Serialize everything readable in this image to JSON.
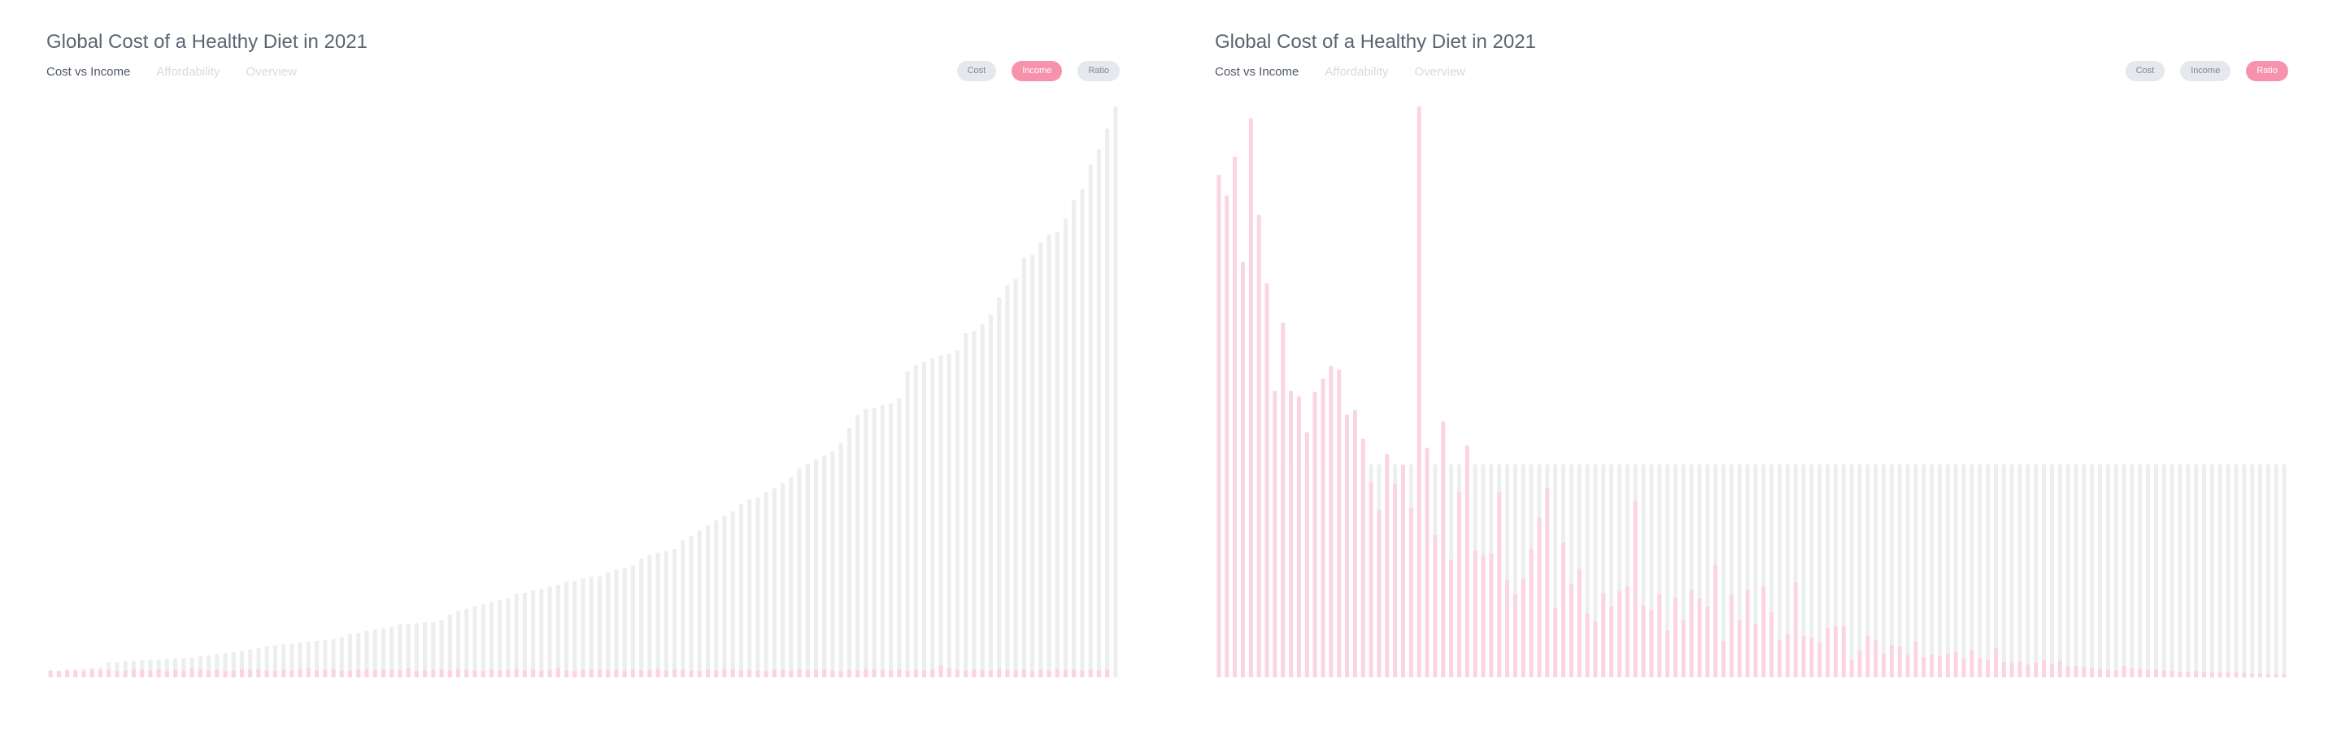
{
  "colors": {
    "background": "#ffffff",
    "ghost_bar": "#eceef0",
    "pink_bar": "#fcd4e0",
    "pill_active": "#f792ad",
    "pill_inactive": "#e5e8ec",
    "title": "#5a6470",
    "tab_active": "#4f5966",
    "tab_inactive": "#d6dae0"
  },
  "panels": [
    {
      "title": "Global Cost of a Healthy Diet in 2021",
      "tabs": [
        {
          "label": "Cost vs Income",
          "active": true
        },
        {
          "label": "Affordability",
          "active": false
        },
        {
          "label": "Overview",
          "active": false
        }
      ],
      "toggles": [
        {
          "label": "Cost",
          "active": false
        },
        {
          "label": "Income",
          "active": true
        },
        {
          "label": "Ratio",
          "active": false
        }
      ]
    },
    {
      "title": "Global Cost of a Healthy Diet in 2021",
      "tabs": [
        {
          "label": "Cost vs Income",
          "active": true
        },
        {
          "label": "Affordability",
          "active": false
        },
        {
          "label": "Overview",
          "active": false
        }
      ],
      "toggles": [
        {
          "label": "Cost",
          "active": false
        },
        {
          "label": "Income",
          "active": false
        },
        {
          "label": "Ratio",
          "active": true
        }
      ]
    }
  ],
  "chart_data": [
    {
      "type": "bar",
      "title": "Global Cost of a Healthy Diet in 2021",
      "xlabel": "",
      "ylabel": "",
      "grid": false,
      "ylim": [
        0,
        100
      ],
      "series": [
        {
          "values": [
            1.1,
            1.2,
            1.3,
            1.4,
            1.5,
            1.6,
            1.7,
            2.6,
            2.7,
            2.8,
            2.9,
            3.0,
            3.1,
            3.1,
            3.2,
            3.3,
            3.4,
            3.5,
            3.7,
            3.8,
            4.1,
            4.2,
            4.4,
            4.6,
            4.9,
            5.2,
            5.5,
            5.6,
            5.8,
            5.9,
            6.1,
            6.2,
            6.4,
            6.6,
            6.7,
            7.0,
            7.6,
            7.8,
            8.2,
            8.4,
            8.6,
            8.8,
            9.3,
            9.4,
            9.5,
            9.7,
            9.7,
            10.0,
            11.0,
            11.6,
            12.0,
            12.4,
            12.8,
            13.2,
            13.5,
            13.9,
            14.6,
            14.8,
            15.2,
            15.4,
            15.9,
            16.2,
            16.7,
            16.9,
            17.3,
            17.6,
            17.7,
            18.4,
            18.9,
            19.2,
            19.6,
            20.8,
            21.4,
            21.8,
            22.1,
            22.5,
            24.0,
            24.8,
            25.7,
            26.6,
            27.5,
            28.3,
            29.1,
            30.3,
            31.2,
            31.5,
            32.4,
            33.1,
            34.0,
            35.1,
            36.6,
            37.4,
            38.2,
            38.9,
            39.6,
            41.0,
            43.7,
            45.9,
            47.0,
            47.2,
            47.6,
            48.0,
            48.9,
            53.6,
            54.7,
            55.2,
            55.9,
            56.4,
            56.7,
            57.3,
            60.3,
            60.6,
            61.8,
            63.5,
            66.5,
            68.7,
            69.8,
            73.5,
            74.0,
            76.2,
            77.6,
            78.0,
            80.3,
            83.6,
            85.5,
            89.8,
            92.5,
            96.1,
            100.0
          ]
        },
        {
          "values": [
            1.2,
            1.1,
            1.3,
            1.2,
            1.1,
            1.4,
            1.2,
            1.3,
            1.1,
            1.2,
            1.5,
            1.3,
            1.2,
            1.4,
            1.1,
            1.3,
            1.2,
            1.6,
            1.4,
            1.2,
            1.3,
            1.1,
            1.2,
            1.5,
            1.3,
            1.4,
            1.2,
            1.1,
            1.3,
            1.2,
            1.5,
            1.6,
            1.2,
            1.3,
            1.4,
            1.2,
            1.1,
            1.3,
            1.5,
            1.2,
            1.4,
            1.3,
            1.2,
            1.6,
            1.1,
            1.2,
            1.3,
            1.4,
            1.2,
            1.5,
            1.3,
            1.2,
            1.1,
            1.4,
            1.2,
            1.3,
            1.5,
            1.2,
            1.4,
            1.2,
            1.3,
            1.6,
            1.2,
            1.1,
            1.3,
            1.4,
            1.5,
            1.2,
            1.3,
            1.1,
            1.4,
            1.2,
            1.3,
            1.5,
            1.2,
            1.4,
            1.3,
            1.2,
            1.1,
            1.3,
            1.2,
            1.5,
            1.4,
            1.2,
            1.3,
            1.2,
            1.1,
            1.4,
            1.3,
            1.2,
            1.5,
            1.2,
            1.3,
            1.4,
            1.2,
            1.1,
            1.3,
            1.2,
            1.5,
            1.4,
            1.3,
            1.2,
            1.4,
            1.1,
            1.3,
            1.2,
            1.4,
            2.1,
            1.6,
            1.3,
            1.2,
            1.4,
            1.3,
            1.2,
            1.5,
            1.3,
            1.2,
            1.4,
            1.1,
            1.3,
            1.2,
            1.5,
            1.3,
            1.4,
            1.2,
            1.3,
            1.2,
            1.4
          ]
        }
      ]
    },
    {
      "type": "bar",
      "title": "Global Cost of a Healthy Diet in 2021",
      "xlabel": "",
      "ylabel": "",
      "grid": false,
      "ylim": [
        0,
        100
      ],
      "series": [
        {
          "values": [
            37.3,
            37.3,
            37.3,
            37.3,
            37.3,
            37.3,
            37.3,
            37.3,
            37.3,
            37.3,
            37.3,
            37.3,
            37.3,
            37.3,
            37.3,
            37.3,
            37.3,
            37.3,
            37.3,
            37.3,
            37.3,
            37.3,
            37.3,
            37.3,
            37.3,
            37.3,
            37.3,
            37.3,
            37.3,
            37.3,
            37.3,
            37.3,
            37.3,
            37.3,
            37.3,
            37.3,
            37.3,
            37.3,
            37.3,
            37.3,
            37.3,
            37.3,
            37.3,
            37.3,
            37.3,
            37.3,
            37.3,
            37.3,
            37.3,
            37.3,
            37.3,
            37.3,
            37.3,
            37.3,
            37.3,
            37.3,
            37.3,
            37.3,
            37.3,
            37.3,
            37.3,
            37.3,
            37.3,
            37.3,
            37.3,
            37.3,
            37.3,
            37.3,
            37.3,
            37.3,
            37.3,
            37.3,
            37.3,
            37.3,
            37.3,
            37.3,
            37.3,
            37.3,
            37.3,
            37.3,
            37.3,
            37.3,
            37.3,
            37.3,
            37.3,
            37.3,
            37.3,
            37.3,
            37.3,
            37.3,
            37.3,
            37.3,
            37.3,
            37.3,
            37.3,
            37.3,
            37.3,
            37.3,
            37.3,
            37.3,
            37.3,
            37.3,
            37.3,
            37.3,
            37.3,
            37.3,
            37.3,
            37.3,
            37.3,
            37.3,
            37.3,
            37.3,
            37.3,
            37.3,
            37.3,
            37.3,
            37.3,
            37.3,
            37.3,
            37.3,
            37.3,
            37.3,
            37.3,
            37.3,
            37.3,
            37.3,
            37.3,
            37.3,
            37.3,
            37.3,
            37.3,
            37.3,
            37.3,
            37.3
          ]
        },
        {
          "values": [
            88.0,
            84.4,
            91.2,
            72.8,
            97.9,
            81.0,
            69.0,
            50.2,
            62.1,
            50.2,
            49.2,
            42.9,
            50.0,
            52.3,
            54.5,
            53.9,
            46.0,
            46.8,
            41.8,
            34.2,
            29.3,
            39.1,
            33.9,
            37.2,
            29.7,
            100.0,
            40.2,
            24.9,
            44.8,
            20.6,
            32.5,
            40.6,
            22.2,
            21.4,
            21.7,
            32.4,
            17.0,
            14.6,
            17.2,
            22.5,
            28.0,
            33.2,
            12.2,
            23.6,
            16.4,
            19.0,
            11.2,
            9.8,
            14.8,
            12.4,
            15.1,
            15.9,
            30.9,
            12.6,
            11.8,
            14.6,
            8.2,
            14.0,
            10.1,
            15.3,
            13.8,
            12.4,
            19.7,
            6.4,
            14.4,
            10.0,
            15.4,
            9.4,
            15.8,
            11.5,
            6.6,
            7.6,
            16.6,
            7.2,
            7.0,
            6.0,
            8.6,
            8.9,
            9.0,
            3.1,
            4.6,
            7.3,
            6.5,
            4.2,
            5.7,
            5.4,
            3.9,
            6.3,
            3.5,
            4.0,
            3.8,
            4.1,
            4.5,
            3.2,
            4.8,
            3.4,
            3.1,
            5.1,
            2.7,
            2.5,
            2.8,
            2.2,
            2.5,
            3.0,
            2.4,
            2.9,
            1.9,
            2.0,
            1.8,
            1.6,
            1.5,
            1.4,
            1.2,
            2.0,
            1.6,
            1.5,
            1.3,
            1.4,
            1.2,
            1.1,
            1.0,
            1.0,
            1.1,
            1.0,
            0.9,
            0.9,
            0.9,
            0.8,
            0.8,
            0.7,
            0.7,
            0.6,
            0.6,
            0.5
          ]
        }
      ]
    }
  ]
}
